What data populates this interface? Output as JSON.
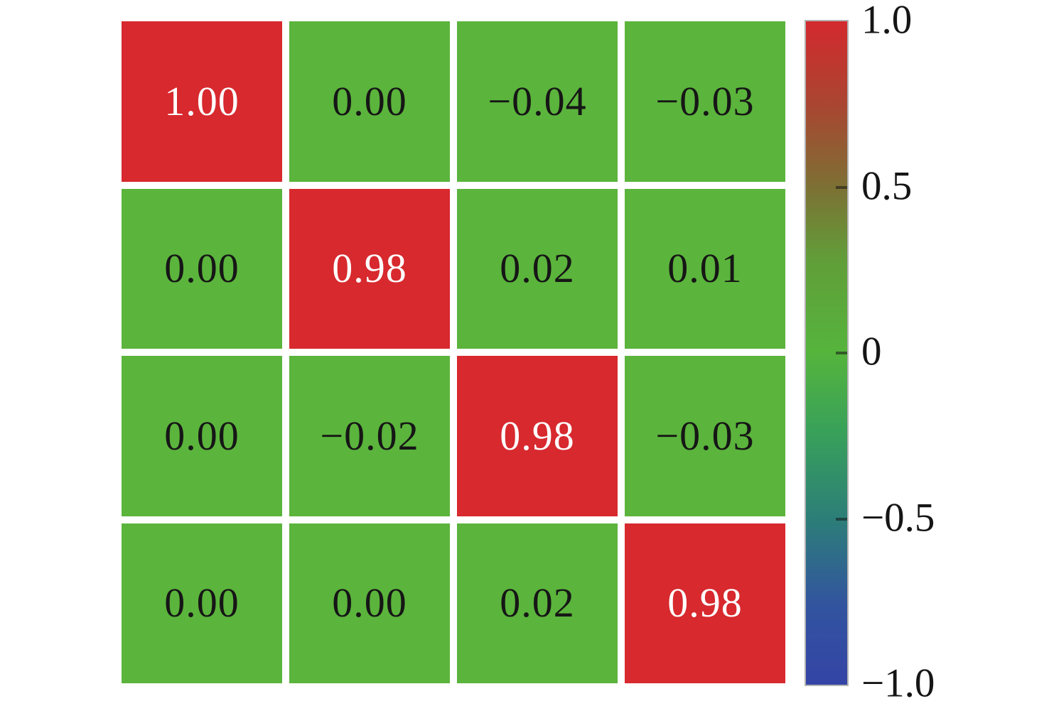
{
  "chart_data": {
    "type": "heatmap",
    "title": "",
    "xlabel": "",
    "ylabel": "",
    "value_range": [
      -1.0,
      1.0
    ],
    "matrix_values": [
      [
        1.0,
        0.0,
        -0.04,
        -0.03
      ],
      [
        0.0,
        0.98,
        0.02,
        0.01
      ],
      [
        0.0,
        -0.02,
        0.98,
        -0.03
      ],
      [
        0.0,
        0.0,
        0.02,
        0.98
      ]
    ],
    "cell_labels": [
      [
        "1.00",
        "0.00",
        "−0.04",
        "−0.03"
      ],
      [
        "0.00",
        "0.98",
        "0.02",
        "0.01"
      ],
      [
        "0.00",
        "−0.02",
        "0.98",
        "−0.03"
      ],
      [
        "0.00",
        "0.00",
        "0.02",
        "0.98"
      ]
    ],
    "colorbar": {
      "tick_labels": [
        "1.0",
        "0.5",
        "0",
        "−0.5",
        "−1.0"
      ],
      "tick_positions_pct": [
        0,
        25,
        50,
        75,
        100
      ],
      "inner_tick_pcts": [
        25,
        50,
        75
      ],
      "gradient_stops": [
        {
          "pct": 0,
          "color": "#d3292e"
        },
        {
          "pct": 13,
          "color": "#a84731"
        },
        {
          "pct": 25,
          "color": "#7d7034"
        },
        {
          "pct": 36,
          "color": "#619e39"
        },
        {
          "pct": 50,
          "color": "#55b43c"
        },
        {
          "pct": 62,
          "color": "#38a15a"
        },
        {
          "pct": 75,
          "color": "#2c7e78"
        },
        {
          "pct": 88,
          "color": "#32549f"
        },
        {
          "pct": 100,
          "color": "#3444a6"
        }
      ]
    },
    "colors": {
      "cell_positive_high": "#d7292e",
      "cell_near_zero": "#5bb43c",
      "text_on_high": "#ffffff",
      "text_on_low": "#161616",
      "high_threshold": 0.5
    }
  }
}
